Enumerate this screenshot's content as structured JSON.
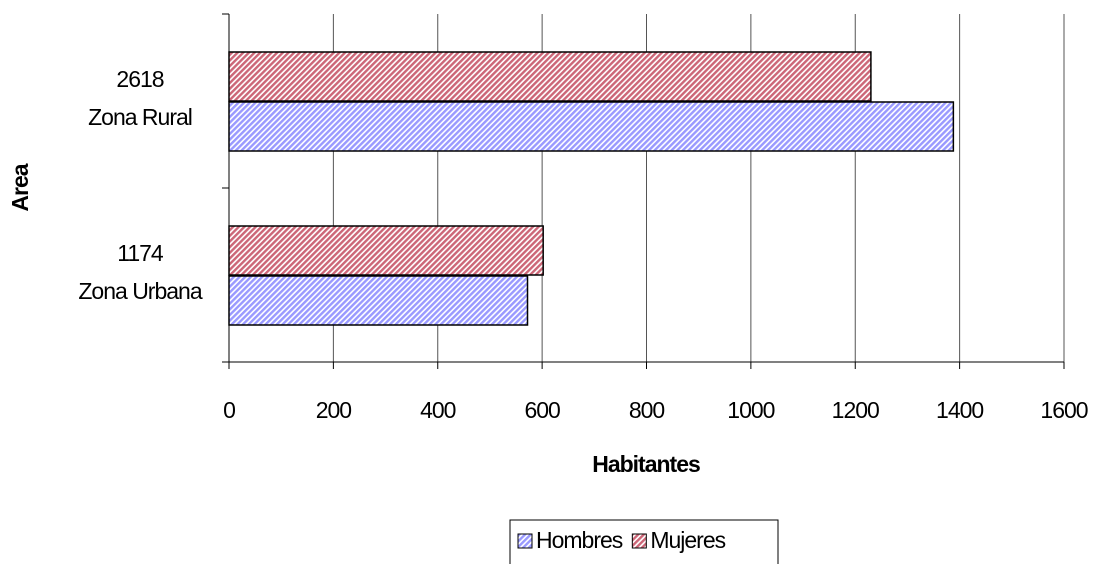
{
  "chart_data": {
    "type": "hbar",
    "x_label": "Habitantes",
    "y_label": "Area",
    "categories": [
      [
        "2618",
        "Zona Rural"
      ],
      [
        "1174",
        "Zona Urbana"
      ]
    ],
    "series": [
      {
        "name": "Hombres",
        "color": "#9999ff",
        "values": [
          1388,
          572
        ]
      },
      {
        "name": "Mujeres",
        "color": "#cc6677",
        "values": [
          1230,
          602
        ]
      }
    ],
    "xlim": [
      0,
      1600
    ],
    "xticks": [
      0,
      200,
      400,
      600,
      800,
      1000,
      1200,
      1400,
      1600
    ],
    "grid": true,
    "legend": "bottom"
  }
}
